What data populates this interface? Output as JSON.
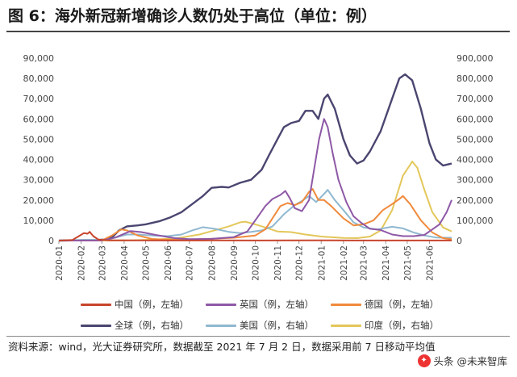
{
  "header": {
    "title": "图 6：海外新冠新增确诊人数仍处于高位（单位：例）"
  },
  "footer": {
    "source": "资料来源：wind，光大证券研究所，数据截至 2021 年 7 月 2 日，数据采用前 7 日移动平均值",
    "watermark": "头条 @未来智库"
  },
  "colors": {
    "china": "#c8442b",
    "uk": "#8e58a6",
    "germany": "#f08a3c",
    "global": "#4a4670",
    "usa": "#8fb8d0",
    "india": "#e3c75a"
  },
  "chart_data": {
    "type": "line",
    "title": "",
    "xlabel": "",
    "ylabel_left": "",
    "ylabel_right": "",
    "x_range": [
      "2020-01-01",
      "2021-07-02"
    ],
    "x_tick_labels": [
      "2020-01",
      "2020-02",
      "2020-03",
      "2020-04",
      "2020-05",
      "2020-06",
      "2020-07",
      "2020-08",
      "2020-09",
      "2020-10",
      "2020-11",
      "2020-12",
      "2021-01",
      "2021-02",
      "2021-03",
      "2021-04",
      "2021-05",
      "2021-06"
    ],
    "y_left": {
      "min": 0,
      "max": 90000,
      "step": 10000,
      "tick_labels": [
        "0",
        "10,000",
        "20,000",
        "30,000",
        "40,000",
        "50,000",
        "60,000",
        "70,000",
        "80,000",
        "90,000"
      ]
    },
    "y_right": {
      "min": 0,
      "max": 900000,
      "step": 100000,
      "tick_labels": [
        "0",
        "100,000",
        "200,000",
        "300,000",
        "400,000",
        "500,000",
        "600,000",
        "700,000",
        "800,000",
        "900,000"
      ]
    },
    "legend_position": "bottom",
    "grid": false,
    "series": [
      {
        "name": "中国（例，左轴）",
        "axis": "left",
        "color": "#c8442b",
        "points": [
          [
            "2020-01-01",
            0
          ],
          [
            "2020-01-20",
            300
          ],
          [
            "2020-01-28",
            2000
          ],
          [
            "2020-02-05",
            3700
          ],
          [
            "2020-02-10",
            3400
          ],
          [
            "2020-02-13",
            4300
          ],
          [
            "2020-02-18",
            2200
          ],
          [
            "2020-02-25",
            500
          ],
          [
            "2020-03-10",
            100
          ],
          [
            "2020-04-15",
            60
          ],
          [
            "2020-06-01",
            20
          ],
          [
            "2020-08-01",
            60
          ],
          [
            "2020-10-01",
            20
          ],
          [
            "2021-01-15",
            110
          ],
          [
            "2021-02-15",
            30
          ],
          [
            "2021-05-01",
            20
          ],
          [
            "2021-07-02",
            30
          ]
        ]
      },
      {
        "name": "英国（例，左轴）",
        "axis": "left",
        "color": "#8e58a6",
        "points": [
          [
            "2020-01-01",
            0
          ],
          [
            "2020-03-01",
            30
          ],
          [
            "2020-03-20",
            1500
          ],
          [
            "2020-04-10",
            4700
          ],
          [
            "2020-04-25",
            4200
          ],
          [
            "2020-05-15",
            2800
          ],
          [
            "2020-06-10",
            1200
          ],
          [
            "2020-07-01",
            700
          ],
          [
            "2020-08-01",
            850
          ],
          [
            "2020-09-01",
            1700
          ],
          [
            "2020-09-20",
            4500
          ],
          [
            "2020-10-05",
            12000
          ],
          [
            "2020-10-15",
            17000
          ],
          [
            "2020-10-25",
            20500
          ],
          [
            "2020-11-05",
            22500
          ],
          [
            "2020-11-12",
            24500
          ],
          [
            "2020-11-18",
            21000
          ],
          [
            "2020-11-25",
            16000
          ],
          [
            "2020-12-05",
            14500
          ],
          [
            "2020-12-15",
            20000
          ],
          [
            "2020-12-22",
            35000
          ],
          [
            "2020-12-29",
            50000
          ],
          [
            "2021-01-05",
            60000
          ],
          [
            "2021-01-10",
            56000
          ],
          [
            "2021-01-17",
            43000
          ],
          [
            "2021-01-25",
            30000
          ],
          [
            "2021-02-05",
            19000
          ],
          [
            "2021-02-15",
            12000
          ],
          [
            "2021-02-25",
            9000
          ],
          [
            "2021-03-10",
            5800
          ],
          [
            "2021-03-25",
            5200
          ],
          [
            "2021-04-10",
            3000
          ],
          [
            "2021-04-25",
            2200
          ],
          [
            "2021-05-10",
            2200
          ],
          [
            "2021-05-25",
            2800
          ],
          [
            "2021-06-05",
            5500
          ],
          [
            "2021-06-15",
            8000
          ],
          [
            "2021-06-25",
            14000
          ],
          [
            "2021-07-02",
            20000
          ]
        ]
      },
      {
        "name": "德国（例，左轴）",
        "axis": "left",
        "color": "#f08a3c",
        "points": [
          [
            "2020-01-01",
            0
          ],
          [
            "2020-03-01",
            30
          ],
          [
            "2020-03-15",
            2500
          ],
          [
            "2020-03-28",
            5500
          ],
          [
            "2020-04-05",
            5000
          ],
          [
            "2020-04-20",
            2500
          ],
          [
            "2020-05-10",
            800
          ],
          [
            "2020-06-01",
            400
          ],
          [
            "2020-07-01",
            400
          ],
          [
            "2020-08-01",
            900
          ],
          [
            "2020-09-01",
            1400
          ],
          [
            "2020-10-01",
            2500
          ],
          [
            "2020-10-15",
            5500
          ],
          [
            "2020-10-25",
            11000
          ],
          [
            "2020-11-05",
            17000
          ],
          [
            "2020-11-15",
            18500
          ],
          [
            "2020-11-25",
            17500
          ],
          [
            "2020-12-05",
            19000
          ],
          [
            "2020-12-15",
            24000
          ],
          [
            "2020-12-20",
            25500
          ],
          [
            "2020-12-28",
            20000
          ],
          [
            "2021-01-05",
            20000
          ],
          [
            "2021-01-15",
            17000
          ],
          [
            "2021-02-01",
            11000
          ],
          [
            "2021-02-15",
            7500
          ],
          [
            "2021-03-01",
            8000
          ],
          [
            "2021-03-15",
            10000
          ],
          [
            "2021-03-28",
            15000
          ],
          [
            "2021-04-10",
            18000
          ],
          [
            "2021-04-20",
            20500
          ],
          [
            "2021-04-25",
            22000
          ],
          [
            "2021-05-05",
            18000
          ],
          [
            "2021-05-20",
            10000
          ],
          [
            "2021-06-05",
            4000
          ],
          [
            "2021-06-20",
            1200
          ],
          [
            "2021-07-02",
            600
          ]
        ]
      },
      {
        "name": "全球（例，右轴）",
        "axis": "right",
        "color": "#4a4670",
        "points": [
          [
            "2020-01-01",
            0
          ],
          [
            "2020-02-05",
            2000
          ],
          [
            "2020-02-20",
            2500
          ],
          [
            "2020-03-05",
            5000
          ],
          [
            "2020-03-15",
            15000
          ],
          [
            "2020-03-25",
            50000
          ],
          [
            "2020-04-05",
            70000
          ],
          [
            "2020-04-20",
            75000
          ],
          [
            "2020-05-01",
            80000
          ],
          [
            "2020-05-20",
            95000
          ],
          [
            "2020-06-05",
            115000
          ],
          [
            "2020-06-20",
            140000
          ],
          [
            "2020-07-05",
            180000
          ],
          [
            "2020-07-20",
            220000
          ],
          [
            "2020-08-01",
            260000
          ],
          [
            "2020-08-15",
            265000
          ],
          [
            "2020-08-25",
            262000
          ],
          [
            "2020-09-10",
            285000
          ],
          [
            "2020-09-25",
            300000
          ],
          [
            "2020-10-10",
            350000
          ],
          [
            "2020-10-20",
            420000
          ],
          [
            "2020-11-01",
            500000
          ],
          [
            "2020-11-10",
            560000
          ],
          [
            "2020-11-20",
            580000
          ],
          [
            "2020-12-01",
            590000
          ],
          [
            "2020-12-10",
            640000
          ],
          [
            "2020-12-20",
            640000
          ],
          [
            "2020-12-28",
            600000
          ],
          [
            "2021-01-05",
            700000
          ],
          [
            "2021-01-10",
            720000
          ],
          [
            "2021-01-20",
            650000
          ],
          [
            "2021-02-01",
            500000
          ],
          [
            "2021-02-10",
            420000
          ],
          [
            "2021-02-20",
            380000
          ],
          [
            "2021-03-01",
            395000
          ],
          [
            "2021-03-10",
            440000
          ],
          [
            "2021-03-25",
            540000
          ],
          [
            "2021-04-10",
            700000
          ],
          [
            "2021-04-20",
            800000
          ],
          [
            "2021-04-28",
            820000
          ],
          [
            "2021-05-08",
            790000
          ],
          [
            "2021-05-20",
            650000
          ],
          [
            "2021-06-01",
            480000
          ],
          [
            "2021-06-10",
            400000
          ],
          [
            "2021-06-20",
            370000
          ],
          [
            "2021-07-02",
            380000
          ]
        ]
      },
      {
        "name": "美国（例，右轴）",
        "axis": "right",
        "color": "#8fb8d0",
        "points": [
          [
            "2020-01-01",
            0
          ],
          [
            "2020-03-10",
            5000
          ],
          [
            "2020-03-25",
            20000
          ],
          [
            "2020-04-05",
            30000
          ],
          [
            "2020-04-20",
            30000
          ],
          [
            "2020-05-10",
            25000
          ],
          [
            "2020-06-01",
            22000
          ],
          [
            "2020-06-20",
            30000
          ],
          [
            "2020-07-05",
            50000
          ],
          [
            "2020-07-20",
            66000
          ],
          [
            "2020-08-05",
            58000
          ],
          [
            "2020-08-25",
            43000
          ],
          [
            "2020-09-10",
            37000
          ],
          [
            "2020-09-25",
            43000
          ],
          [
            "2020-10-10",
            50000
          ],
          [
            "2020-10-25",
            70000
          ],
          [
            "2020-11-10",
            130000
          ],
          [
            "2020-11-25",
            175000
          ],
          [
            "2020-12-05",
            195000
          ],
          [
            "2020-12-15",
            220000
          ],
          [
            "2020-12-25",
            190000
          ],
          [
            "2021-01-05",
            230000
          ],
          [
            "2021-01-10",
            250000
          ],
          [
            "2021-01-20",
            200000
          ],
          [
            "2021-02-01",
            150000
          ],
          [
            "2021-02-15",
            90000
          ],
          [
            "2021-03-01",
            65000
          ],
          [
            "2021-03-20",
            55000
          ],
          [
            "2021-04-10",
            68000
          ],
          [
            "2021-04-25",
            60000
          ],
          [
            "2021-05-10",
            40000
          ],
          [
            "2021-05-25",
            25000
          ],
          [
            "2021-06-10",
            15000
          ],
          [
            "2021-07-02",
            14000
          ]
        ]
      },
      {
        "name": "印度（例，右轴）",
        "axis": "right",
        "color": "#e3c75a",
        "points": [
          [
            "2020-01-01",
            0
          ],
          [
            "2020-03-15",
            500
          ],
          [
            "2020-04-15",
            1500
          ],
          [
            "2020-05-15",
            5000
          ],
          [
            "2020-06-15",
            12000
          ],
          [
            "2020-07-15",
            30000
          ],
          [
            "2020-08-10",
            55000
          ],
          [
            "2020-08-25",
            70000
          ],
          [
            "2020-09-10",
            90000
          ],
          [
            "2020-09-17",
            93000
          ],
          [
            "2020-10-01",
            80000
          ],
          [
            "2020-10-15",
            65000
          ],
          [
            "2020-11-01",
            45000
          ],
          [
            "2020-11-20",
            42000
          ],
          [
            "2020-12-10",
            30000
          ],
          [
            "2021-01-01",
            20000
          ],
          [
            "2021-02-01",
            13000
          ],
          [
            "2021-02-20",
            12000
          ],
          [
            "2021-03-10",
            20000
          ],
          [
            "2021-03-25",
            50000
          ],
          [
            "2021-04-10",
            150000
          ],
          [
            "2021-04-25",
            320000
          ],
          [
            "2021-05-08",
            390000
          ],
          [
            "2021-05-15",
            360000
          ],
          [
            "2021-05-25",
            250000
          ],
          [
            "2021-06-05",
            140000
          ],
          [
            "2021-06-20",
            65000
          ],
          [
            "2021-07-02",
            45000
          ]
        ]
      }
    ]
  }
}
